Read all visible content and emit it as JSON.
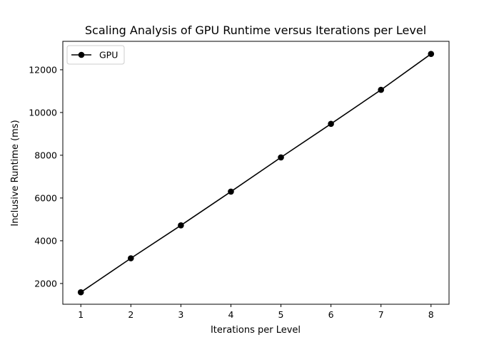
{
  "chart_data": {
    "type": "line",
    "title": "Scaling Analysis of GPU Runtime versus Iterations per Level",
    "xlabel": "Iterations per Level",
    "ylabel": "Inclusive Runtime (ms)",
    "x": [
      1,
      2,
      3,
      4,
      5,
      6,
      7,
      8
    ],
    "xlim": [
      0.64,
      8.36
    ],
    "ylim": [
      1030,
      13330
    ],
    "xticks": [
      1,
      2,
      3,
      4,
      5,
      6,
      7,
      8
    ],
    "yticks": [
      2000,
      4000,
      6000,
      8000,
      10000,
      12000
    ],
    "grid": false,
    "legend_position": "top-left",
    "series": [
      {
        "name": "GPU",
        "color": "#000000",
        "marker": "circle",
        "values": [
          1590,
          3180,
          4720,
          6300,
          7900,
          9470,
          11060,
          12740
        ]
      }
    ]
  }
}
